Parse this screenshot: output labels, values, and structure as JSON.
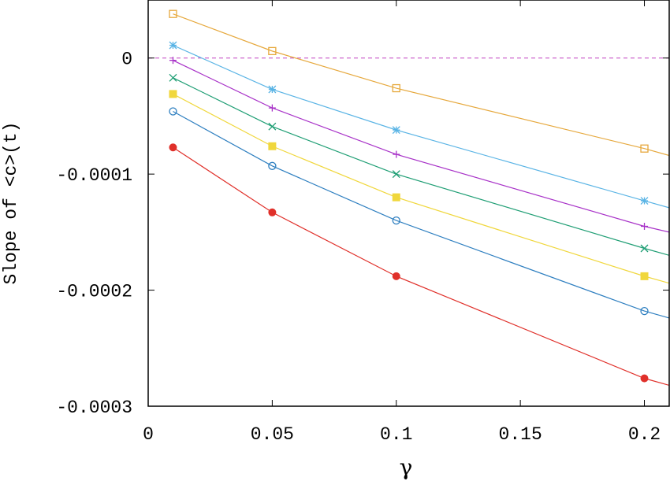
{
  "chart_data": {
    "type": "line",
    "title": "",
    "xlabel": "γ",
    "ylabel": "Slope of <c>(t)",
    "xlim": [
      0,
      0.21
    ],
    "ylim": [
      -0.0003,
      5e-05
    ],
    "x_ticks": [
      {
        "value": 0,
        "label": "0"
      },
      {
        "value": 0.05,
        "label": "0.05"
      },
      {
        "value": 0.1,
        "label": "0.1"
      },
      {
        "value": 0.15,
        "label": "0.15"
      },
      {
        "value": 0.2,
        "label": "0.2"
      }
    ],
    "y_ticks": [
      {
        "value": 0,
        "label": "0"
      },
      {
        "value": -0.0001,
        "label": "-0.0001"
      },
      {
        "value": -0.0002,
        "label": "-0.0002"
      },
      {
        "value": -0.0003,
        "label": "-0.0003"
      }
    ],
    "reference_line": {
      "y": 0,
      "style": "dashed",
      "color": "#c040c0"
    },
    "grid": false,
    "series": [
      {
        "marker": "open-square",
        "color": "#e6a83c",
        "x": [
          0.01,
          0.05,
          0.1,
          0.2,
          0.21
        ],
        "y": [
          3.8e-05,
          6e-06,
          -2.6e-05,
          -7.8e-05,
          -8.4e-05
        ]
      },
      {
        "marker": "asterisk",
        "color": "#5ab4e5",
        "x": [
          0.01,
          0.05,
          0.1,
          0.2,
          0.21
        ],
        "y": [
          1.1e-05,
          -2.7e-05,
          -6.2e-05,
          -0.000123,
          -0.000129
        ]
      },
      {
        "marker": "plus",
        "color": "#a832c8",
        "x": [
          0.01,
          0.05,
          0.1,
          0.2,
          0.21
        ],
        "y": [
          -2e-06,
          -4.3e-05,
          -8.3e-05,
          -0.000145,
          -0.00015
        ]
      },
      {
        "marker": "cross",
        "color": "#1f9e74",
        "x": [
          0.01,
          0.05,
          0.1,
          0.2,
          0.21
        ],
        "y": [
          -1.7e-05,
          -5.9e-05,
          -0.0001,
          -0.000164,
          -0.00017
        ]
      },
      {
        "marker": "filled-square",
        "color": "#f0d73c",
        "x": [
          0.01,
          0.05,
          0.1,
          0.2,
          0.21
        ],
        "y": [
          -3.1e-05,
          -7.6e-05,
          -0.00012,
          -0.000188,
          -0.000194
        ]
      },
      {
        "marker": "open-circle",
        "color": "#2e7fc0",
        "x": [
          0.01,
          0.05,
          0.1,
          0.2,
          0.21
        ],
        "y": [
          -4.6e-05,
          -9.3e-05,
          -0.00014,
          -0.000218,
          -0.000224
        ]
      },
      {
        "marker": "filled-circle",
        "color": "#e0302a",
        "x": [
          0.01,
          0.05,
          0.1,
          0.2,
          0.21
        ],
        "y": [
          -7.7e-05,
          -0.000133,
          -0.000188,
          -0.000276,
          -0.000282
        ]
      }
    ]
  }
}
